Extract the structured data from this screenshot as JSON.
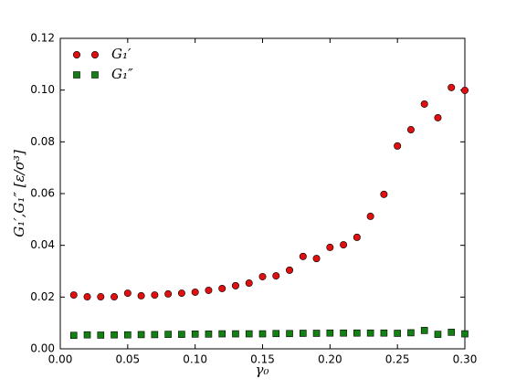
{
  "chart_data": {
    "type": "scatter",
    "xlabel": "γ₀",
    "ylabel": "G₁′,G₁″ [ε/σ³]",
    "x": [
      0.01,
      0.02,
      0.03,
      0.04,
      0.05,
      0.06,
      0.07,
      0.08,
      0.09,
      0.1,
      0.11,
      0.12,
      0.13,
      0.14,
      0.15,
      0.16,
      0.17,
      0.18,
      0.19,
      0.2,
      0.21,
      0.22,
      0.23,
      0.24,
      0.25,
      0.26,
      0.27,
      0.28,
      0.29,
      0.3
    ],
    "series": [
      {
        "name": "G₁′",
        "color": "#e01010",
        "marker": "circle",
        "values": [
          0.0208,
          0.0201,
          0.0201,
          0.0201,
          0.0215,
          0.0205,
          0.0208,
          0.0212,
          0.0215,
          0.0219,
          0.0226,
          0.0233,
          0.0244,
          0.0254,
          0.0279,
          0.0282,
          0.0304,
          0.0357,
          0.0349,
          0.0392,
          0.0402,
          0.0431,
          0.0512,
          0.0597,
          0.0784,
          0.0847,
          0.0946,
          0.0893,
          0.101,
          0.0999
        ]
      },
      {
        "name": "G₁″",
        "color": "#138013",
        "marker": "square",
        "values": [
          0.0052,
          0.0054,
          0.0053,
          0.0054,
          0.0054,
          0.0055,
          0.0055,
          0.0056,
          0.0056,
          0.0057,
          0.0057,
          0.0058,
          0.0058,
          0.0058,
          0.0058,
          0.0059,
          0.0059,
          0.006,
          0.006,
          0.0061,
          0.0061,
          0.0061,
          0.0061,
          0.0061,
          0.006,
          0.0062,
          0.0071,
          0.0056,
          0.0064,
          0.0058
        ]
      }
    ],
    "xlim": [
      0,
      0.3
    ],
    "xticks": [
      {
        "value": 0,
        "label": "0.00"
      },
      {
        "value": 0.05,
        "label": "0.05"
      },
      {
        "value": 0.1,
        "label": "0.10"
      },
      {
        "value": 0.15,
        "label": "0.15"
      },
      {
        "value": 0.2,
        "label": "0.20"
      },
      {
        "value": 0.25,
        "label": "0.25"
      },
      {
        "value": 0.3,
        "label": "0.30"
      }
    ],
    "ylim": [
      0,
      0.12
    ],
    "yticks": [
      {
        "value": 0,
        "label": "0.00"
      },
      {
        "value": 0.02,
        "label": "0.02"
      },
      {
        "value": 0.04,
        "label": "0.04"
      },
      {
        "value": 0.06,
        "label": "0.06"
      },
      {
        "value": 0.08,
        "label": "0.08"
      },
      {
        "value": 0.1,
        "label": "0.10"
      },
      {
        "value": 0.12,
        "label": "0.12"
      }
    ],
    "legend": "upper-left"
  }
}
